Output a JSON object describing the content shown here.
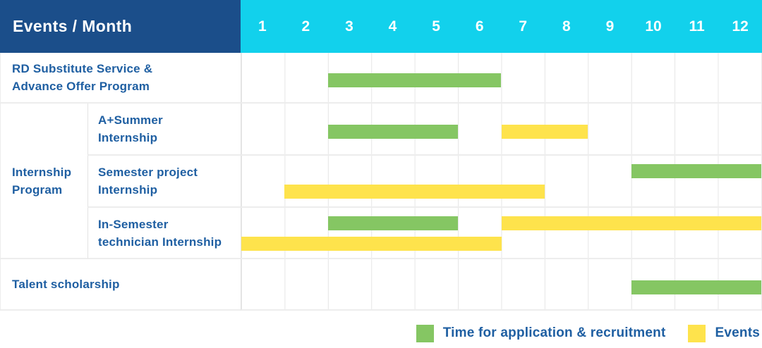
{
  "header": {
    "title": "Events / Month",
    "months": [
      "1",
      "2",
      "3",
      "4",
      "5",
      "6",
      "7",
      "8",
      "9",
      "10",
      "11",
      "12"
    ]
  },
  "colors": {
    "header_bg": "#1b4e8a",
    "months_bg": "#12d1ec",
    "recruitment": "#85c663",
    "event": "#fee34c",
    "label_text": "#1f5fa2"
  },
  "chart_data": {
    "type": "gantt",
    "x_unit": "month",
    "x_range": [
      1,
      12
    ],
    "rows": [
      {
        "group": null,
        "label": "RD Substitute Service &\nAdvance Offer Program",
        "lanes": 1,
        "bars": [
          {
            "kind": "recruitment",
            "start": 3,
            "end": 6,
            "lane": 0
          }
        ]
      },
      {
        "group": "Internship\nProgram",
        "in_group": true,
        "label": "A+Summer\nInternship",
        "lanes": 1,
        "bars": [
          {
            "kind": "recruitment",
            "start": 3,
            "end": 5,
            "lane": 0
          },
          {
            "kind": "event",
            "start": 7,
            "end": 8,
            "lane": 0
          }
        ]
      },
      {
        "in_group": true,
        "label": "Semester project\nInternship",
        "lanes": 2,
        "bars": [
          {
            "kind": "recruitment",
            "start": 10,
            "end": 12,
            "lane": 0
          },
          {
            "kind": "event",
            "start": 2,
            "end": 7,
            "lane": 1
          }
        ]
      },
      {
        "in_group": true,
        "label": "In-Semester\ntechnician Internship",
        "lanes": 2,
        "bars": [
          {
            "kind": "recruitment",
            "start": 3,
            "end": 5,
            "lane": 0
          },
          {
            "kind": "event",
            "start": 7,
            "end": 12,
            "lane": 0
          },
          {
            "kind": "event",
            "start": 1,
            "end": 6,
            "lane": 1
          }
        ]
      },
      {
        "group": null,
        "label": "Talent scholarship",
        "lanes": 1,
        "bars": [
          {
            "kind": "recruitment",
            "start": 10,
            "end": 12,
            "lane": 0
          }
        ]
      }
    ]
  },
  "legend": {
    "items": [
      {
        "kind": "recruitment",
        "label": "Time for application & recruitment"
      },
      {
        "kind": "event",
        "label": "Events"
      }
    ]
  }
}
